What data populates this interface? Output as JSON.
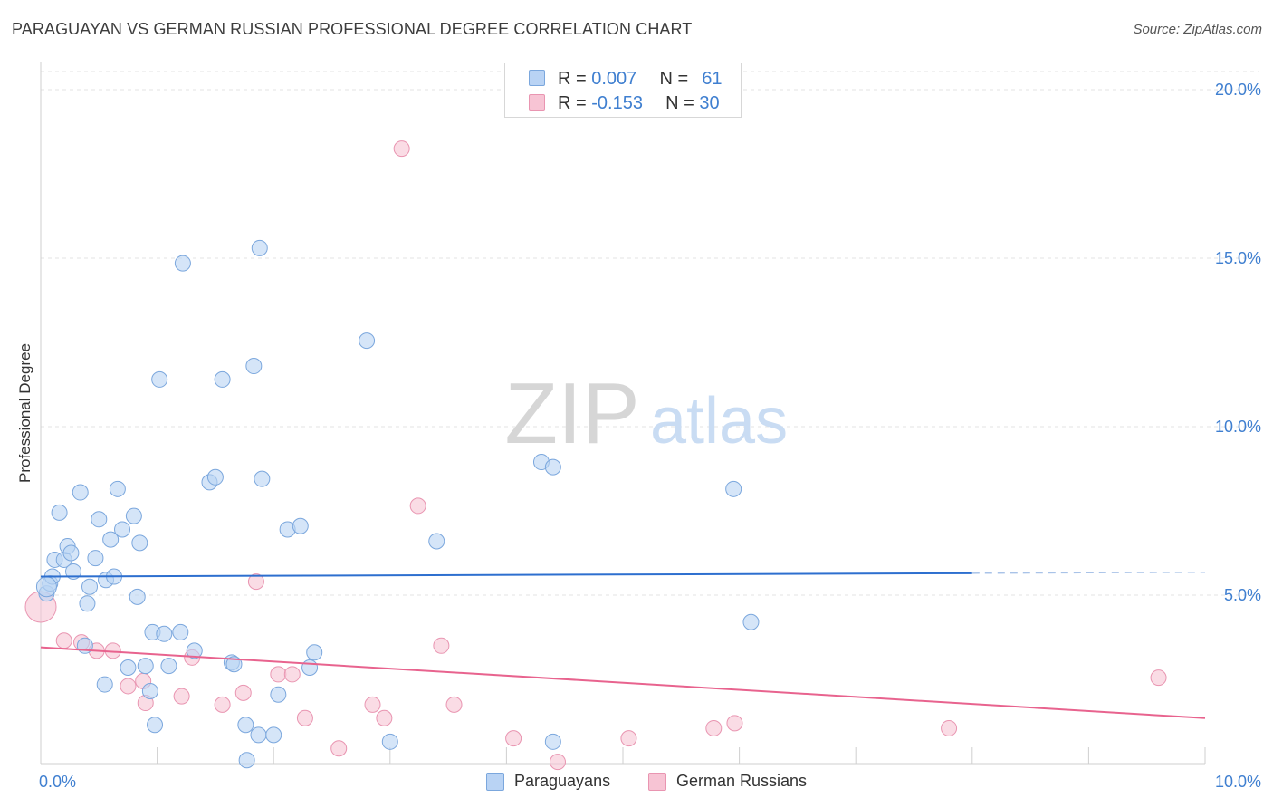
{
  "title": "PARAGUAYAN VS GERMAN RUSSIAN PROFESSIONAL DEGREE CORRELATION CHART",
  "source": "Source: ZipAtlas.com",
  "watermark": {
    "zip": "ZIP",
    "atlas": "atlas"
  },
  "colors": {
    "blue_fill": "#b9d3f4",
    "blue_stroke": "#7ba7dd",
    "blue_line": "#2d6fcf",
    "pink_fill": "#f7c4d4",
    "pink_stroke": "#e995b1",
    "pink_line": "#e8638e",
    "tick_label": "#3f7fd0",
    "grid": "#e3e3e3"
  },
  "legend_top": {
    "rows": [
      {
        "r_label": "R =",
        "r_value": "0.007",
        "n_label": "N =",
        "n_value": "61"
      },
      {
        "r_label": "R =",
        "r_value": "-0.153",
        "n_label": "N =",
        "n_value": "30"
      }
    ]
  },
  "legend_bottom": [
    {
      "label": "Paraguayans"
    },
    {
      "label": "German Russians"
    }
  ],
  "chart_data": {
    "type": "scatter",
    "title": "PARAGUAYAN VS GERMAN RUSSIAN PROFESSIONAL DEGREE CORRELATION CHART",
    "xlabel": "",
    "ylabel": "Professional Degree",
    "xlim": [
      0,
      10
    ],
    "ylim": [
      0,
      20
    ],
    "x_tick_labels": [
      "0.0%",
      "10.0%"
    ],
    "y_ticks": [
      5,
      10,
      15,
      20
    ],
    "y_tick_labels": [
      "5.0%",
      "10.0%",
      "15.0%",
      "20.0%"
    ],
    "grid": true,
    "series": [
      {
        "name": "Paraguayans",
        "R": 0.007,
        "N": 61,
        "trend": {
          "x_start": 0,
          "y_start": 5.55,
          "x_end": 8.0,
          "y_end": 5.65,
          "dash_x_end": 10.0,
          "dash_y_end": 5.68
        },
        "points": [
          [
            0.05,
            5.05
          ],
          [
            0.08,
            5.35
          ],
          [
            0.1,
            5.55
          ],
          [
            0.12,
            6.05
          ],
          [
            0.16,
            7.45
          ],
          [
            0.2,
            6.05
          ],
          [
            0.23,
            6.45
          ],
          [
            0.26,
            6.25
          ],
          [
            0.28,
            5.7
          ],
          [
            0.34,
            8.05
          ],
          [
            0.38,
            3.5
          ],
          [
            0.4,
            4.75
          ],
          [
            0.42,
            5.25
          ],
          [
            0.47,
            6.1
          ],
          [
            0.5,
            7.25
          ],
          [
            0.55,
            2.35
          ],
          [
            0.56,
            5.45
          ],
          [
            0.6,
            6.65
          ],
          [
            0.63,
            5.55
          ],
          [
            0.66,
            8.15
          ],
          [
            0.7,
            6.95
          ],
          [
            0.75,
            2.85
          ],
          [
            0.8,
            7.35
          ],
          [
            0.83,
            4.95
          ],
          [
            0.85,
            6.55
          ],
          [
            0.9,
            2.9
          ],
          [
            0.94,
            2.15
          ],
          [
            0.96,
            3.9
          ],
          [
            0.98,
            1.15
          ],
          [
            1.02,
            11.4
          ],
          [
            1.06,
            3.85
          ],
          [
            1.1,
            2.9
          ],
          [
            1.2,
            3.9
          ],
          [
            1.22,
            14.85
          ],
          [
            1.32,
            3.35
          ],
          [
            1.45,
            8.35
          ],
          [
            1.5,
            8.5
          ],
          [
            1.56,
            11.4
          ],
          [
            1.64,
            3.0
          ],
          [
            1.66,
            2.95
          ],
          [
            1.76,
            1.15
          ],
          [
            1.77,
            0.1
          ],
          [
            1.83,
            11.8
          ],
          [
            1.87,
            0.85
          ],
          [
            1.88,
            15.3
          ],
          [
            1.9,
            8.45
          ],
          [
            2.0,
            0.85
          ],
          [
            2.04,
            2.05
          ],
          [
            2.12,
            6.95
          ],
          [
            2.23,
            7.05
          ],
          [
            2.31,
            2.85
          ],
          [
            2.35,
            3.3
          ],
          [
            2.8,
            12.55
          ],
          [
            3.0,
            0.65
          ],
          [
            3.4,
            6.6
          ],
          [
            4.3,
            8.95
          ],
          [
            4.4,
            8.8
          ],
          [
            4.4,
            0.65
          ],
          [
            5.95,
            8.15
          ],
          [
            6.1,
            4.2
          ],
          [
            0.05,
            5.25
          ]
        ]
      },
      {
        "name": "German Russians",
        "R": -0.153,
        "N": 30,
        "trend": {
          "x_start": 0,
          "y_start": 3.45,
          "x_end": 10.0,
          "y_end": 1.35
        },
        "points": [
          [
            0.0,
            4.65
          ],
          [
            0.2,
            3.65
          ],
          [
            0.35,
            3.6
          ],
          [
            0.48,
            3.35
          ],
          [
            0.62,
            3.35
          ],
          [
            0.75,
            2.3
          ],
          [
            0.88,
            2.45
          ],
          [
            0.9,
            1.8
          ],
          [
            1.21,
            2.0
          ],
          [
            1.3,
            3.15
          ],
          [
            1.56,
            1.75
          ],
          [
            1.74,
            2.1
          ],
          [
            1.85,
            5.4
          ],
          [
            2.04,
            2.65
          ],
          [
            2.16,
            2.65
          ],
          [
            2.27,
            1.35
          ],
          [
            2.56,
            0.45
          ],
          [
            2.85,
            1.75
          ],
          [
            2.95,
            1.35
          ],
          [
            3.1,
            18.25
          ],
          [
            3.24,
            7.65
          ],
          [
            3.44,
            3.5
          ],
          [
            3.55,
            1.75
          ],
          [
            4.06,
            0.75
          ],
          [
            4.44,
            0.05
          ],
          [
            5.05,
            0.75
          ],
          [
            5.78,
            1.05
          ],
          [
            5.96,
            1.2
          ],
          [
            7.8,
            1.05
          ],
          [
            9.6,
            2.55
          ]
        ]
      }
    ]
  }
}
